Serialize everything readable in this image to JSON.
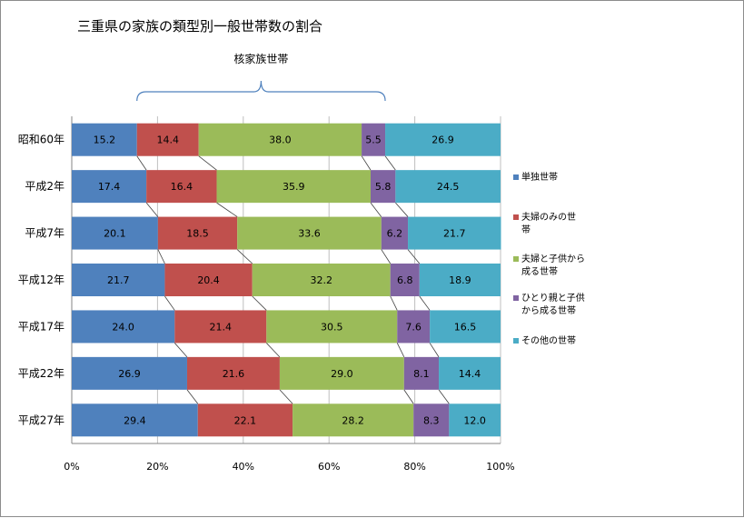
{
  "chart_data": {
    "type": "bar",
    "orientation": "horizontal",
    "stacked": "percent",
    "title": "三重県の家族の類型別一般世帯数の割合",
    "categories": [
      "昭和60年",
      "平成2年",
      "平成7年",
      "平成12年",
      "平成17年",
      "平成22年",
      "平成27年"
    ],
    "series": [
      {
        "name": "単独世帯",
        "color": "#4f81bd",
        "values": [
          15.2,
          17.4,
          20.1,
          21.7,
          24.0,
          26.9,
          29.4
        ],
        "labels": [
          "15.2",
          "17.4",
          "20.1",
          "21.7",
          "24.0",
          "26.9",
          "29.4"
        ]
      },
      {
        "name": "夫婦のみの世帯",
        "color": "#c0504d",
        "values": [
          14.4,
          16.4,
          18.5,
          20.4,
          21.4,
          21.6,
          22.1
        ],
        "labels": [
          "14.4",
          "16.4",
          "18.5",
          "20.4",
          "21.4",
          "21.6",
          "22.1"
        ]
      },
      {
        "name": "夫婦と子供から成る世帯",
        "color": "#9bbb59",
        "values": [
          38.0,
          35.9,
          33.6,
          32.2,
          30.5,
          29.0,
          28.2
        ],
        "labels": [
          "38.0",
          "35.9",
          "33.6",
          "32.2",
          "30.5",
          "29.0",
          "28.2"
        ]
      },
      {
        "name": "ひとり親と子供から成る世帯",
        "color": "#8064a2",
        "values": [
          5.5,
          5.8,
          6.2,
          6.8,
          7.6,
          8.1,
          8.3
        ],
        "labels": [
          "5.5",
          "5.8",
          "6.2",
          "6.8",
          "7.6",
          "8.1",
          "8.3"
        ]
      },
      {
        "name": "その他の世帯",
        "color": "#4bacc6",
        "values": [
          26.9,
          24.5,
          21.7,
          18.9,
          16.5,
          14.4,
          12.0
        ],
        "labels": [
          "26.9",
          "24.5",
          "21.7",
          "18.9",
          "16.5",
          "14.4",
          "12.0"
        ]
      }
    ],
    "legend_lines": [
      [
        "単独世帯"
      ],
      [
        "夫婦のみの世",
        "帯"
      ],
      [
        "夫婦と子供から",
        "成る世帯"
      ],
      [
        "ひとり親と子供",
        "から成る世帯"
      ],
      [
        "その他の世帯"
      ]
    ],
    "xticks": [
      "0%",
      "20%",
      "40%",
      "60%",
      "80%",
      "100%"
    ],
    "xlim": [
      0,
      100
    ],
    "grid": true,
    "legend_position": "right",
    "annotation": "核家族世帯"
  }
}
